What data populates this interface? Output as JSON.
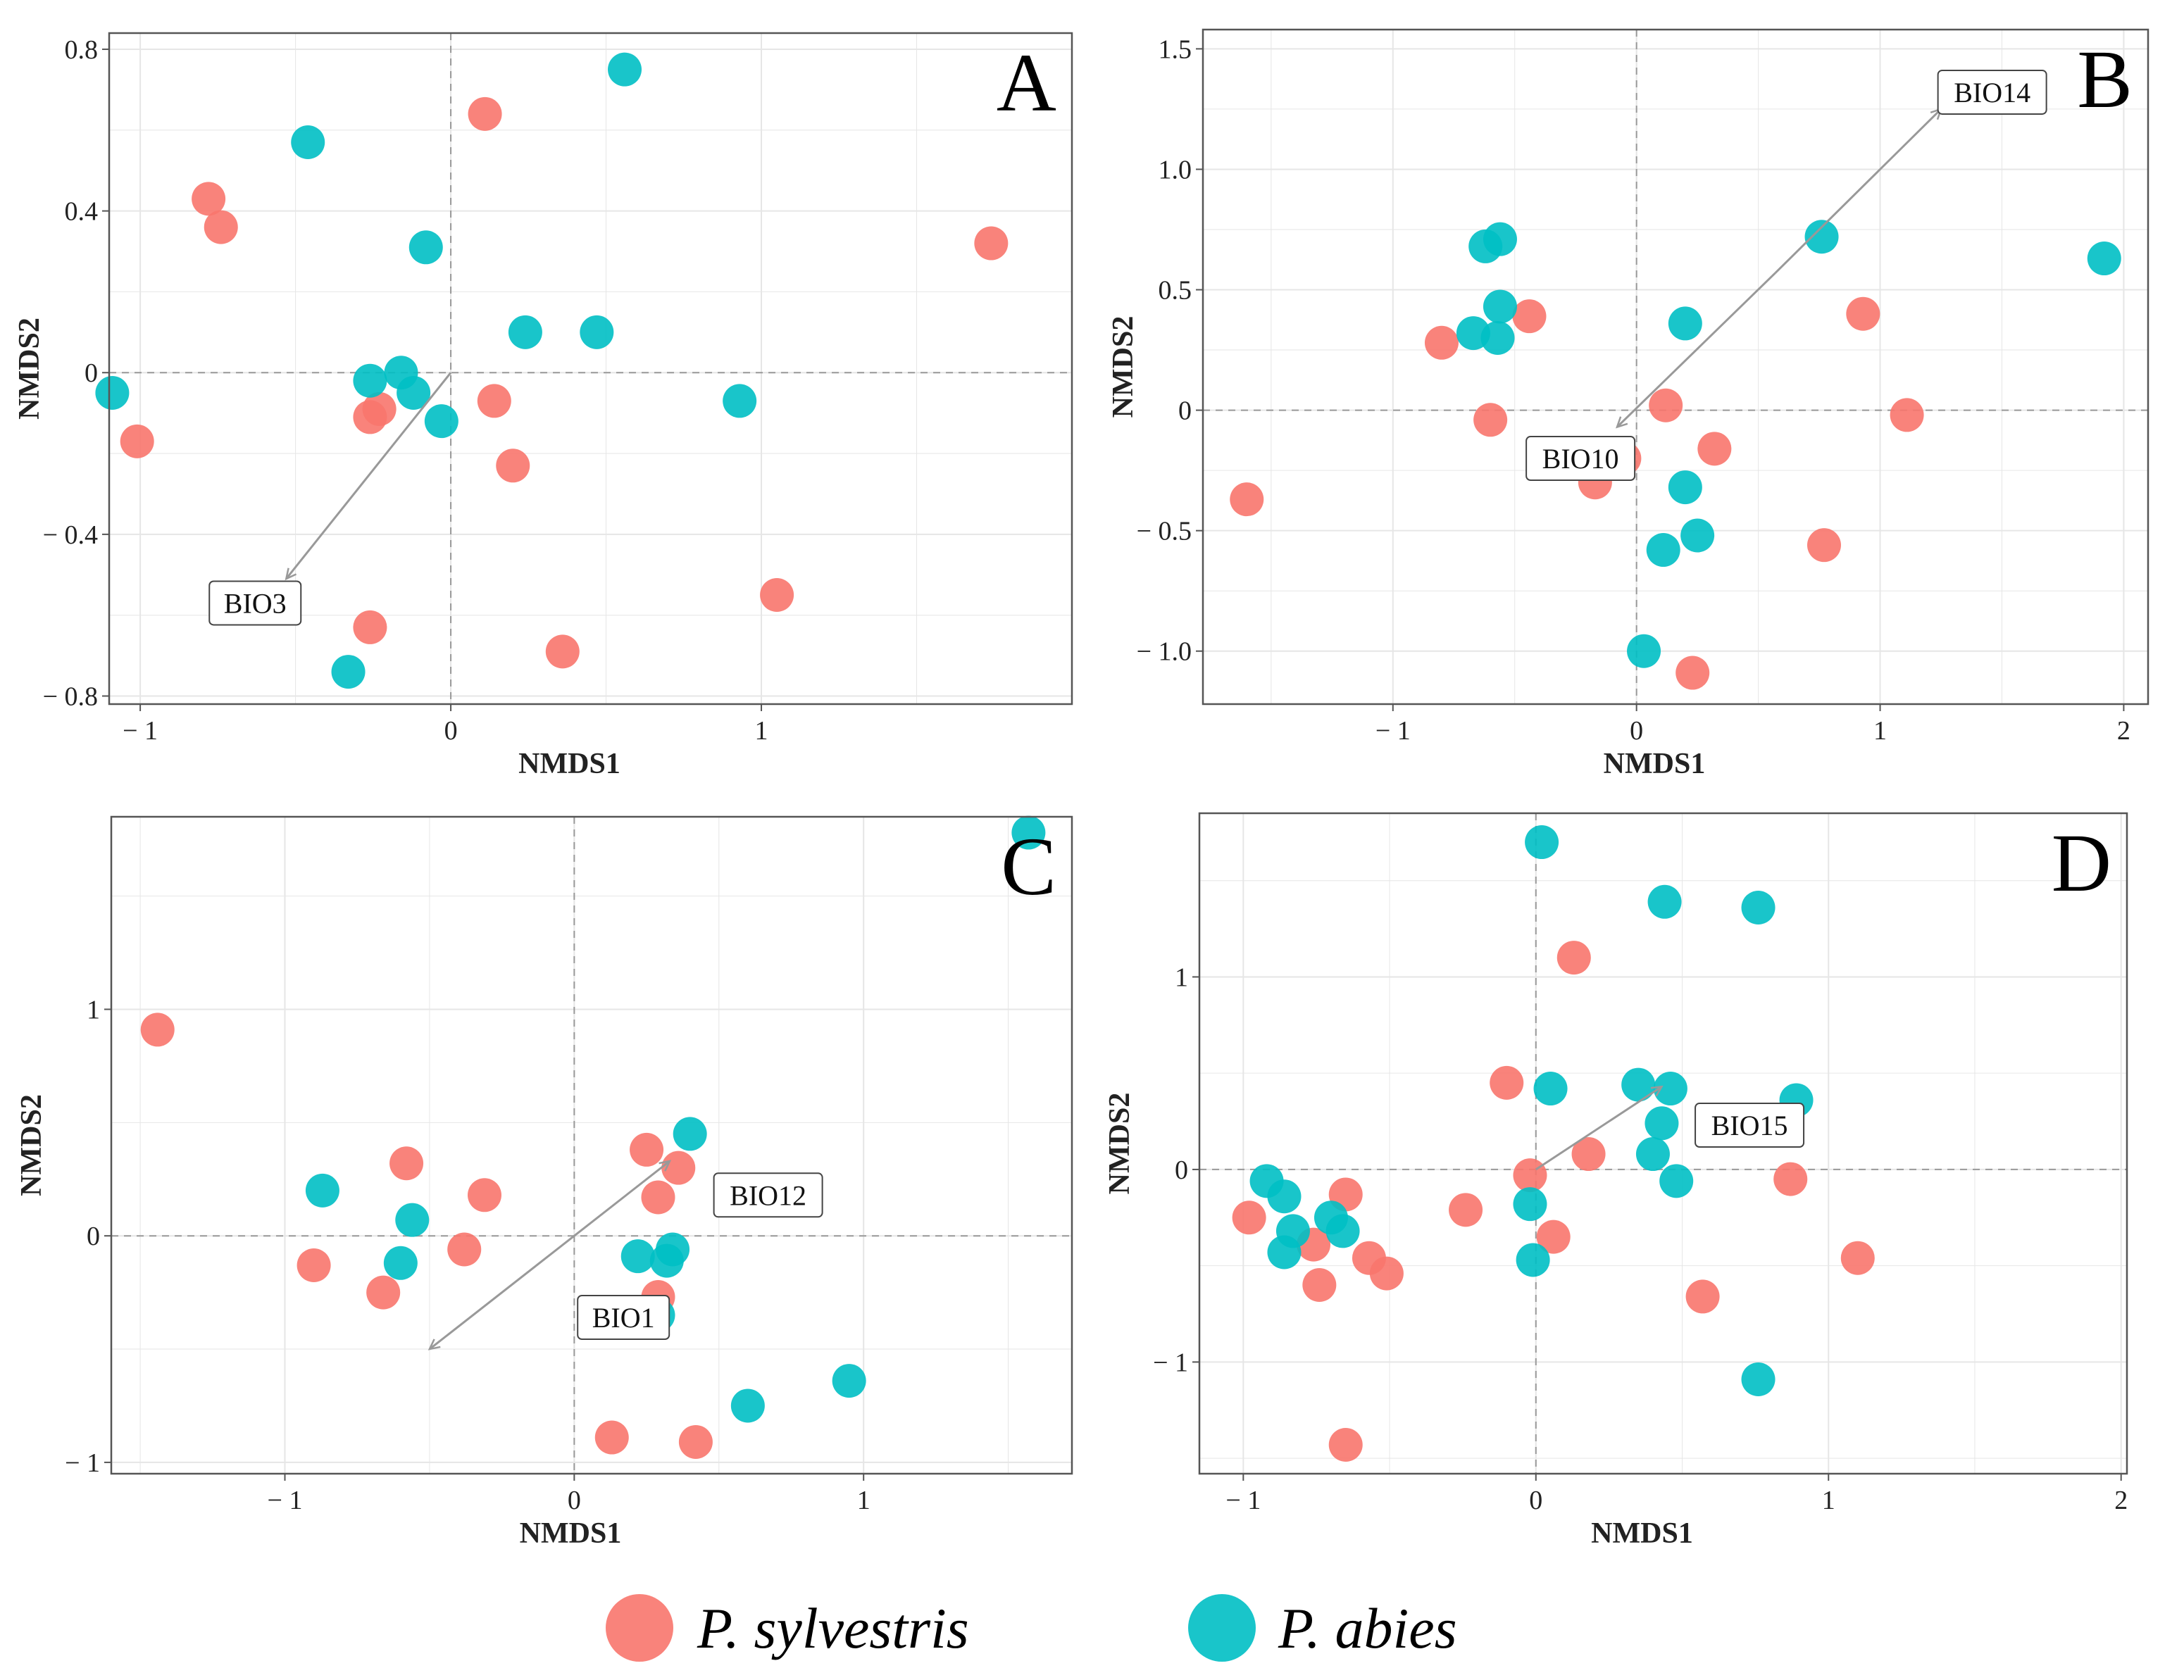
{
  "colors": {
    "p_sylvestris": "#F8766D",
    "p_abies": "#00BFC4",
    "grid": "#E6E6E6",
    "zero_line": "#999999",
    "arrow": "#999999",
    "border": "#555555"
  },
  "legend": {
    "items": [
      {
        "label": "P. sylvestris",
        "color_key": "p_sylvestris"
      },
      {
        "label": "P. abies",
        "color_key": "p_abies"
      }
    ]
  },
  "chart_data": [
    {
      "type": "scatter",
      "panel": "A",
      "xlabel": "NMDS1",
      "ylabel": "NMDS2",
      "xlim": [
        -1.1,
        2.0
      ],
      "ylim": [
        -0.82,
        0.84
      ],
      "xticks": [
        -1,
        0,
        1
      ],
      "xtick_labels": [
        "− 1",
        "0",
        "1"
      ],
      "yticks": [
        -0.8,
        -0.4,
        0,
        0.4,
        0.8
      ],
      "ytick_labels": [
        "− 0.8",
        "− 0.4",
        "0",
        "0.4",
        "0.8"
      ],
      "series": [
        {
          "name": "P. sylvestris",
          "color_key": "p_sylvestris",
          "points": [
            [
              0.11,
              0.64
            ],
            [
              -0.78,
              0.43
            ],
            [
              -0.74,
              0.36
            ],
            [
              1.74,
              0.32
            ],
            [
              -1.01,
              -0.17
            ],
            [
              -0.26,
              -0.11
            ],
            [
              -0.23,
              -0.09
            ],
            [
              0.14,
              -0.07
            ],
            [
              0.2,
              -0.23
            ],
            [
              1.05,
              -0.55
            ],
            [
              -0.26,
              -0.63
            ],
            [
              0.36,
              -0.69
            ]
          ]
        },
        {
          "name": "P. abies",
          "color_key": "p_abies",
          "points": [
            [
              0.56,
              0.75
            ],
            [
              -0.46,
              0.57
            ],
            [
              -0.08,
              0.31
            ],
            [
              0.24,
              0.1
            ],
            [
              0.47,
              0.1
            ],
            [
              -1.09,
              -0.05
            ],
            [
              -0.26,
              -0.02
            ],
            [
              -0.16,
              0.0
            ],
            [
              -0.12,
              -0.05
            ],
            [
              -0.03,
              -0.12
            ],
            [
              0.93,
              -0.07
            ],
            [
              -0.33,
              -0.74
            ]
          ]
        }
      ],
      "arrows": [
        {
          "from": [
            0,
            0
          ],
          "to": [
            -0.53,
            -0.51
          ],
          "label": "BIO3",
          "label_at": [
            -0.63,
            -0.57
          ]
        }
      ]
    },
    {
      "type": "scatter",
      "panel": "B",
      "xlabel": "NMDS1",
      "ylabel": "NMDS2",
      "xlim": [
        -1.78,
        2.1
      ],
      "ylim": [
        -1.22,
        1.58
      ],
      "xticks": [
        -1,
        0,
        1,
        2
      ],
      "xtick_labels": [
        "− 1",
        "0",
        "1",
        "2"
      ],
      "yticks": [
        -1.0,
        -0.5,
        0,
        0.5,
        1.0,
        1.5
      ],
      "ytick_labels": [
        "− 1.0",
        "− 0.5",
        "0",
        "0.5",
        "1.0",
        "1.5"
      ],
      "series": [
        {
          "name": "P. sylvestris",
          "color_key": "p_sylvestris",
          "points": [
            [
              -0.8,
              0.28
            ],
            [
              -0.44,
              0.39
            ],
            [
              -0.6,
              -0.04
            ],
            [
              -1.6,
              -0.37
            ],
            [
              0.12,
              0.02
            ],
            [
              0.32,
              -0.16
            ],
            [
              -0.17,
              -0.3
            ],
            [
              -0.05,
              -0.2
            ],
            [
              0.93,
              0.4
            ],
            [
              1.11,
              -0.02
            ],
            [
              0.77,
              -0.56
            ],
            [
              0.23,
              -1.09
            ]
          ]
        },
        {
          "name": "P. abies",
          "color_key": "p_abies",
          "points": [
            [
              -0.56,
              0.71
            ],
            [
              -0.62,
              0.68
            ],
            [
              -0.56,
              0.43
            ],
            [
              -0.67,
              0.32
            ],
            [
              -0.57,
              0.3
            ],
            [
              0.2,
              0.36
            ],
            [
              0.76,
              0.72
            ],
            [
              1.92,
              0.63
            ],
            [
              0.2,
              -0.32
            ],
            [
              0.25,
              -0.52
            ],
            [
              0.11,
              -0.58
            ],
            [
              0.03,
              -1.0
            ]
          ]
        }
      ],
      "arrows": [
        {
          "from": [
            0.57,
            0.57
          ],
          "to": [
            1.25,
            1.25
          ],
          "label": "BIO14",
          "label_at": [
            1.46,
            1.32
          ]
        },
        {
          "from": [
            0.57,
            0.57
          ],
          "to": [
            -0.08,
            -0.07
          ],
          "label": "BIO10",
          "label_at": [
            -0.23,
            -0.2
          ]
        }
      ]
    },
    {
      "type": "scatter",
      "panel": "C",
      "xlabel": "NMDS1",
      "ylabel": "NMDS2",
      "xlim": [
        -1.6,
        1.72
      ],
      "ylim": [
        -1.05,
        1.85
      ],
      "xticks": [
        -1,
        0,
        1
      ],
      "xtick_labels": [
        "− 1",
        "0",
        "1"
      ],
      "yticks": [
        -1,
        0,
        1
      ],
      "ytick_labels": [
        "− 1",
        "0",
        "1"
      ],
      "series": [
        {
          "name": "P. sylvestris",
          "color_key": "p_sylvestris",
          "points": [
            [
              -1.44,
              0.91
            ],
            [
              -0.58,
              0.32
            ],
            [
              -0.31,
              0.18
            ],
            [
              -0.9,
              -0.13
            ],
            [
              -0.66,
              -0.25
            ],
            [
              -0.38,
              -0.06
            ],
            [
              0.25,
              0.38
            ],
            [
              0.36,
              0.3
            ],
            [
              0.29,
              0.17
            ],
            [
              0.29,
              -0.27
            ],
            [
              0.13,
              -0.89
            ],
            [
              0.42,
              -0.91
            ]
          ]
        },
        {
          "name": "P. abies",
          "color_key": "p_abies",
          "points": [
            [
              1.57,
              1.78
            ],
            [
              -0.87,
              0.2
            ],
            [
              -0.56,
              0.07
            ],
            [
              -0.6,
              -0.12
            ],
            [
              0.4,
              0.45
            ],
            [
              0.22,
              -0.09
            ],
            [
              0.34,
              -0.06
            ],
            [
              0.32,
              -0.11
            ],
            [
              0.29,
              -0.35
            ],
            [
              0.6,
              -0.75
            ],
            [
              0.95,
              -0.64
            ]
          ]
        }
      ],
      "arrows": [
        {
          "from": [
            0,
            0
          ],
          "to": [
            0.33,
            0.33
          ],
          "label": "BIO12",
          "label_at": [
            0.67,
            0.18
          ]
        },
        {
          "from": [
            0,
            0
          ],
          "to": [
            -0.5,
            -0.5
          ],
          "label": "BIO1",
          "label_at": [
            0.17,
            -0.36
          ]
        }
      ]
    },
    {
      "type": "scatter",
      "panel": "D",
      "xlabel": "NMDS1",
      "ylabel": "NMDS2",
      "xlim": [
        -1.15,
        2.02
      ],
      "ylim": [
        -1.58,
        1.85
      ],
      "xticks": [
        -1,
        0,
        1,
        2
      ],
      "xtick_labels": [
        "− 1",
        "0",
        "1",
        "2"
      ],
      "yticks": [
        -1,
        0,
        1
      ],
      "ytick_labels": [
        "− 1",
        "0",
        "1"
      ],
      "series": [
        {
          "name": "P. sylvestris",
          "color_key": "p_sylvestris",
          "points": [
            [
              -0.98,
              -0.25
            ],
            [
              -0.65,
              -0.13
            ],
            [
              -0.76,
              -0.39
            ],
            [
              -0.74,
              -0.6
            ],
            [
              -0.57,
              -0.46
            ],
            [
              -0.51,
              -0.54
            ],
            [
              -0.24,
              -0.21
            ],
            [
              -0.1,
              0.45
            ],
            [
              -0.02,
              -0.03
            ],
            [
              0.06,
              -0.35
            ],
            [
              0.18,
              0.08
            ],
            [
              0.13,
              1.1
            ],
            [
              0.57,
              -0.66
            ],
            [
              0.87,
              -0.05
            ],
            [
              1.1,
              -0.46
            ],
            [
              -0.65,
              -1.43
            ]
          ]
        },
        {
          "name": "P. abies",
          "color_key": "p_abies",
          "points": [
            [
              0.02,
              1.7
            ],
            [
              0.44,
              1.39
            ],
            [
              0.76,
              1.36
            ],
            [
              0.05,
              0.42
            ],
            [
              0.35,
              0.44
            ],
            [
              0.46,
              0.42
            ],
            [
              0.43,
              0.24
            ],
            [
              0.89,
              0.36
            ],
            [
              0.4,
              0.08
            ],
            [
              0.48,
              -0.06
            ],
            [
              -0.92,
              -0.06
            ],
            [
              -0.86,
              -0.14
            ],
            [
              -0.83,
              -0.32
            ],
            [
              -0.86,
              -0.43
            ],
            [
              -0.7,
              -0.25
            ],
            [
              -0.66,
              -0.32
            ],
            [
              -0.02,
              -0.18
            ],
            [
              -0.01,
              -0.47
            ],
            [
              0.76,
              -1.09
            ]
          ]
        }
      ],
      "arrows": [
        {
          "from": [
            0,
            0
          ],
          "to": [
            0.43,
            0.43
          ],
          "label": "BIO15",
          "label_at": [
            0.73,
            0.23
          ]
        }
      ]
    }
  ]
}
